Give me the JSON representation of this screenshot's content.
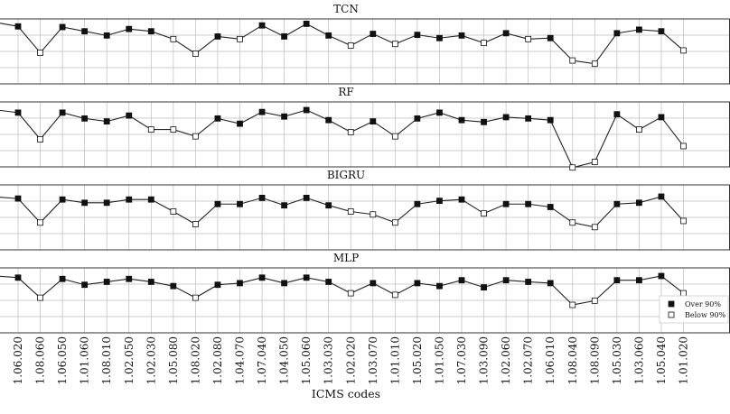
{
  "chart_data": {
    "type": "line",
    "xlabel": "ICMS codes",
    "categories": [
      "1.06.020",
      "1.08.060",
      "1.06.050",
      "1.01.060",
      "1.08.010",
      "1.02.050",
      "1.02.030",
      "1.05.080",
      "1.08.020",
      "1.02.080",
      "1.04.070",
      "1.07.040",
      "1.04.050",
      "1.05.060",
      "1.03.030",
      "1.02.020",
      "1.03.070",
      "1.01.010",
      "1.05.020",
      "1.01.050",
      "1.07.030",
      "1.03.090",
      "1.02.060",
      "1.02.070",
      "1.06.010",
      "1.08.040",
      "1.08.090",
      "1.05.030",
      "1.03.060",
      "1.05.040",
      "1.01.020"
    ],
    "grid": true,
    "legend": {
      "position": "bottom-right",
      "entries": [
        {
          "label": "Over 90%",
          "marker": "filled-square"
        },
        {
          "label": "Below 90%",
          "marker": "open-square"
        }
      ]
    },
    "colors": {
      "line": "#222222",
      "grid": "#bdbdbd",
      "marker_fill": "#111111",
      "marker_open": "#ffffff"
    },
    "panels": [
      {
        "title": "TCN",
        "ylim": [
          0.8,
          1.0
        ],
        "lead_in": 0.987,
        "values": [
          0.977,
          0.896,
          0.975,
          0.962,
          0.949,
          0.969,
          0.962,
          0.938,
          0.893,
          0.946,
          0.938,
          0.98,
          0.946,
          0.985,
          0.949,
          0.918,
          0.954,
          0.923,
          0.951,
          0.941,
          0.949,
          0.926,
          0.956,
          0.938,
          0.941,
          0.872,
          0.862,
          0.956,
          0.967,
          0.962,
          0.903
        ],
        "over90": [
          true,
          false,
          true,
          true,
          true,
          true,
          true,
          false,
          false,
          true,
          false,
          true,
          true,
          true,
          true,
          false,
          true,
          false,
          true,
          true,
          true,
          false,
          true,
          false,
          true,
          false,
          false,
          true,
          true,
          true,
          false
        ]
      },
      {
        "title": "RF",
        "ylim": [
          0.8,
          1.0
        ],
        "lead_in": 0.974,
        "values": [
          0.967,
          0.885,
          0.967,
          0.949,
          0.94,
          0.958,
          0.915,
          0.915,
          0.894,
          0.949,
          0.933,
          0.969,
          0.955,
          0.975,
          0.944,
          0.907,
          0.94,
          0.894,
          0.949,
          0.967,
          0.944,
          0.938,
          0.953,
          0.949,
          0.944,
          0.798,
          0.815,
          0.962,
          0.915,
          0.953,
          0.864
        ],
        "over90": [
          true,
          false,
          true,
          true,
          true,
          true,
          false,
          false,
          false,
          true,
          true,
          true,
          true,
          true,
          true,
          false,
          true,
          false,
          true,
          true,
          true,
          true,
          true,
          true,
          true,
          false,
          false,
          true,
          false,
          true,
          false
        ]
      },
      {
        "title": "BIGRU",
        "ylim": [
          0.8,
          1.0
        ],
        "lead_in": 0.962,
        "values": [
          0.958,
          0.884,
          0.955,
          0.945,
          0.945,
          0.955,
          0.955,
          0.918,
          0.879,
          0.941,
          0.941,
          0.96,
          0.937,
          0.96,
          0.937,
          0.918,
          0.909,
          0.884,
          0.941,
          0.951,
          0.955,
          0.912,
          0.941,
          0.941,
          0.932,
          0.884,
          0.87,
          0.941,
          0.945,
          0.964,
          0.889
        ],
        "over90": [
          true,
          false,
          true,
          true,
          true,
          true,
          true,
          false,
          false,
          true,
          true,
          true,
          true,
          true,
          true,
          false,
          false,
          false,
          true,
          true,
          true,
          false,
          true,
          true,
          true,
          false,
          false,
          true,
          true,
          true,
          false
        ]
      },
      {
        "title": "MLP",
        "ylim": [
          0.8,
          1.0
        ],
        "lead_in": 0.974,
        "values": [
          0.97,
          0.908,
          0.966,
          0.948,
          0.957,
          0.966,
          0.957,
          0.944,
          0.908,
          0.948,
          0.953,
          0.97,
          0.953,
          0.97,
          0.957,
          0.922,
          0.953,
          0.917,
          0.953,
          0.944,
          0.962,
          0.94,
          0.962,
          0.957,
          0.953,
          0.886,
          0.899,
          0.962,
          0.962,
          0.975,
          0.922
        ],
        "over90": [
          true,
          false,
          true,
          true,
          true,
          true,
          true,
          true,
          false,
          true,
          true,
          true,
          true,
          true,
          true,
          false,
          true,
          false,
          true,
          true,
          true,
          true,
          true,
          true,
          true,
          false,
          false,
          true,
          true,
          true,
          false
        ]
      }
    ]
  }
}
